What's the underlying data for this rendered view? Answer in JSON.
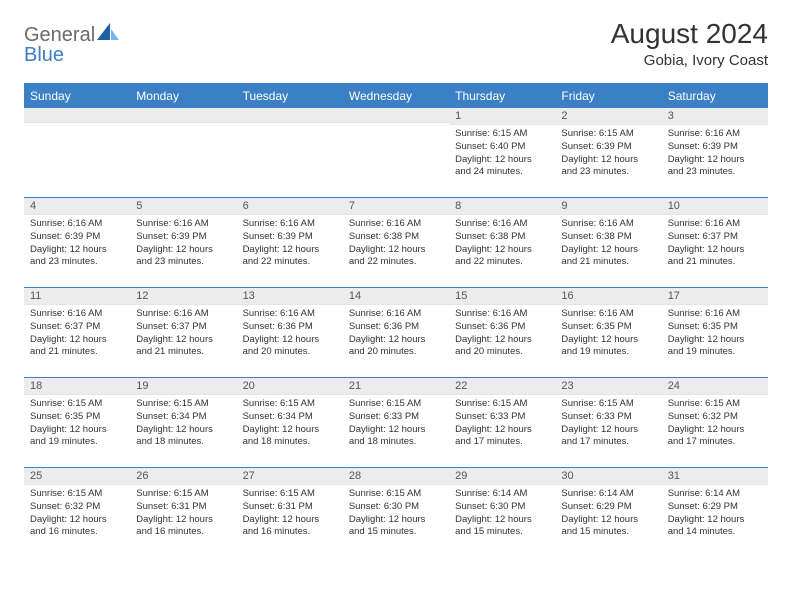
{
  "brand": {
    "word1": "General",
    "word2": "Blue"
  },
  "title": {
    "month": "August 2024",
    "location": "Gobia, Ivory Coast"
  },
  "colors": {
    "header_bg": "#3b7fc4",
    "header_text": "#ffffff",
    "daynum_bg": "#ececec",
    "text": "#333333",
    "rule": "#3b7fc4"
  },
  "weekdays": [
    "Sunday",
    "Monday",
    "Tuesday",
    "Wednesday",
    "Thursday",
    "Friday",
    "Saturday"
  ],
  "weeks": [
    [
      {
        "n": "",
        "sr": "",
        "ss": "",
        "dl": ""
      },
      {
        "n": "",
        "sr": "",
        "ss": "",
        "dl": ""
      },
      {
        "n": "",
        "sr": "",
        "ss": "",
        "dl": ""
      },
      {
        "n": "",
        "sr": "",
        "ss": "",
        "dl": ""
      },
      {
        "n": "1",
        "sr": "Sunrise: 6:15 AM",
        "ss": "Sunset: 6:40 PM",
        "dl": "Daylight: 12 hours and 24 minutes."
      },
      {
        "n": "2",
        "sr": "Sunrise: 6:15 AM",
        "ss": "Sunset: 6:39 PM",
        "dl": "Daylight: 12 hours and 23 minutes."
      },
      {
        "n": "3",
        "sr": "Sunrise: 6:16 AM",
        "ss": "Sunset: 6:39 PM",
        "dl": "Daylight: 12 hours and 23 minutes."
      }
    ],
    [
      {
        "n": "4",
        "sr": "Sunrise: 6:16 AM",
        "ss": "Sunset: 6:39 PM",
        "dl": "Daylight: 12 hours and 23 minutes."
      },
      {
        "n": "5",
        "sr": "Sunrise: 6:16 AM",
        "ss": "Sunset: 6:39 PM",
        "dl": "Daylight: 12 hours and 23 minutes."
      },
      {
        "n": "6",
        "sr": "Sunrise: 6:16 AM",
        "ss": "Sunset: 6:39 PM",
        "dl": "Daylight: 12 hours and 22 minutes."
      },
      {
        "n": "7",
        "sr": "Sunrise: 6:16 AM",
        "ss": "Sunset: 6:38 PM",
        "dl": "Daylight: 12 hours and 22 minutes."
      },
      {
        "n": "8",
        "sr": "Sunrise: 6:16 AM",
        "ss": "Sunset: 6:38 PM",
        "dl": "Daylight: 12 hours and 22 minutes."
      },
      {
        "n": "9",
        "sr": "Sunrise: 6:16 AM",
        "ss": "Sunset: 6:38 PM",
        "dl": "Daylight: 12 hours and 21 minutes."
      },
      {
        "n": "10",
        "sr": "Sunrise: 6:16 AM",
        "ss": "Sunset: 6:37 PM",
        "dl": "Daylight: 12 hours and 21 minutes."
      }
    ],
    [
      {
        "n": "11",
        "sr": "Sunrise: 6:16 AM",
        "ss": "Sunset: 6:37 PM",
        "dl": "Daylight: 12 hours and 21 minutes."
      },
      {
        "n": "12",
        "sr": "Sunrise: 6:16 AM",
        "ss": "Sunset: 6:37 PM",
        "dl": "Daylight: 12 hours and 21 minutes."
      },
      {
        "n": "13",
        "sr": "Sunrise: 6:16 AM",
        "ss": "Sunset: 6:36 PM",
        "dl": "Daylight: 12 hours and 20 minutes."
      },
      {
        "n": "14",
        "sr": "Sunrise: 6:16 AM",
        "ss": "Sunset: 6:36 PM",
        "dl": "Daylight: 12 hours and 20 minutes."
      },
      {
        "n": "15",
        "sr": "Sunrise: 6:16 AM",
        "ss": "Sunset: 6:36 PM",
        "dl": "Daylight: 12 hours and 20 minutes."
      },
      {
        "n": "16",
        "sr": "Sunrise: 6:16 AM",
        "ss": "Sunset: 6:35 PM",
        "dl": "Daylight: 12 hours and 19 minutes."
      },
      {
        "n": "17",
        "sr": "Sunrise: 6:16 AM",
        "ss": "Sunset: 6:35 PM",
        "dl": "Daylight: 12 hours and 19 minutes."
      }
    ],
    [
      {
        "n": "18",
        "sr": "Sunrise: 6:15 AM",
        "ss": "Sunset: 6:35 PM",
        "dl": "Daylight: 12 hours and 19 minutes."
      },
      {
        "n": "19",
        "sr": "Sunrise: 6:15 AM",
        "ss": "Sunset: 6:34 PM",
        "dl": "Daylight: 12 hours and 18 minutes."
      },
      {
        "n": "20",
        "sr": "Sunrise: 6:15 AM",
        "ss": "Sunset: 6:34 PM",
        "dl": "Daylight: 12 hours and 18 minutes."
      },
      {
        "n": "21",
        "sr": "Sunrise: 6:15 AM",
        "ss": "Sunset: 6:33 PM",
        "dl": "Daylight: 12 hours and 18 minutes."
      },
      {
        "n": "22",
        "sr": "Sunrise: 6:15 AM",
        "ss": "Sunset: 6:33 PM",
        "dl": "Daylight: 12 hours and 17 minutes."
      },
      {
        "n": "23",
        "sr": "Sunrise: 6:15 AM",
        "ss": "Sunset: 6:33 PM",
        "dl": "Daylight: 12 hours and 17 minutes."
      },
      {
        "n": "24",
        "sr": "Sunrise: 6:15 AM",
        "ss": "Sunset: 6:32 PM",
        "dl": "Daylight: 12 hours and 17 minutes."
      }
    ],
    [
      {
        "n": "25",
        "sr": "Sunrise: 6:15 AM",
        "ss": "Sunset: 6:32 PM",
        "dl": "Daylight: 12 hours and 16 minutes."
      },
      {
        "n": "26",
        "sr": "Sunrise: 6:15 AM",
        "ss": "Sunset: 6:31 PM",
        "dl": "Daylight: 12 hours and 16 minutes."
      },
      {
        "n": "27",
        "sr": "Sunrise: 6:15 AM",
        "ss": "Sunset: 6:31 PM",
        "dl": "Daylight: 12 hours and 16 minutes."
      },
      {
        "n": "28",
        "sr": "Sunrise: 6:15 AM",
        "ss": "Sunset: 6:30 PM",
        "dl": "Daylight: 12 hours and 15 minutes."
      },
      {
        "n": "29",
        "sr": "Sunrise: 6:14 AM",
        "ss": "Sunset: 6:30 PM",
        "dl": "Daylight: 12 hours and 15 minutes."
      },
      {
        "n": "30",
        "sr": "Sunrise: 6:14 AM",
        "ss": "Sunset: 6:29 PM",
        "dl": "Daylight: 12 hours and 15 minutes."
      },
      {
        "n": "31",
        "sr": "Sunrise: 6:14 AM",
        "ss": "Sunset: 6:29 PM",
        "dl": "Daylight: 12 hours and 14 minutes."
      }
    ]
  ]
}
